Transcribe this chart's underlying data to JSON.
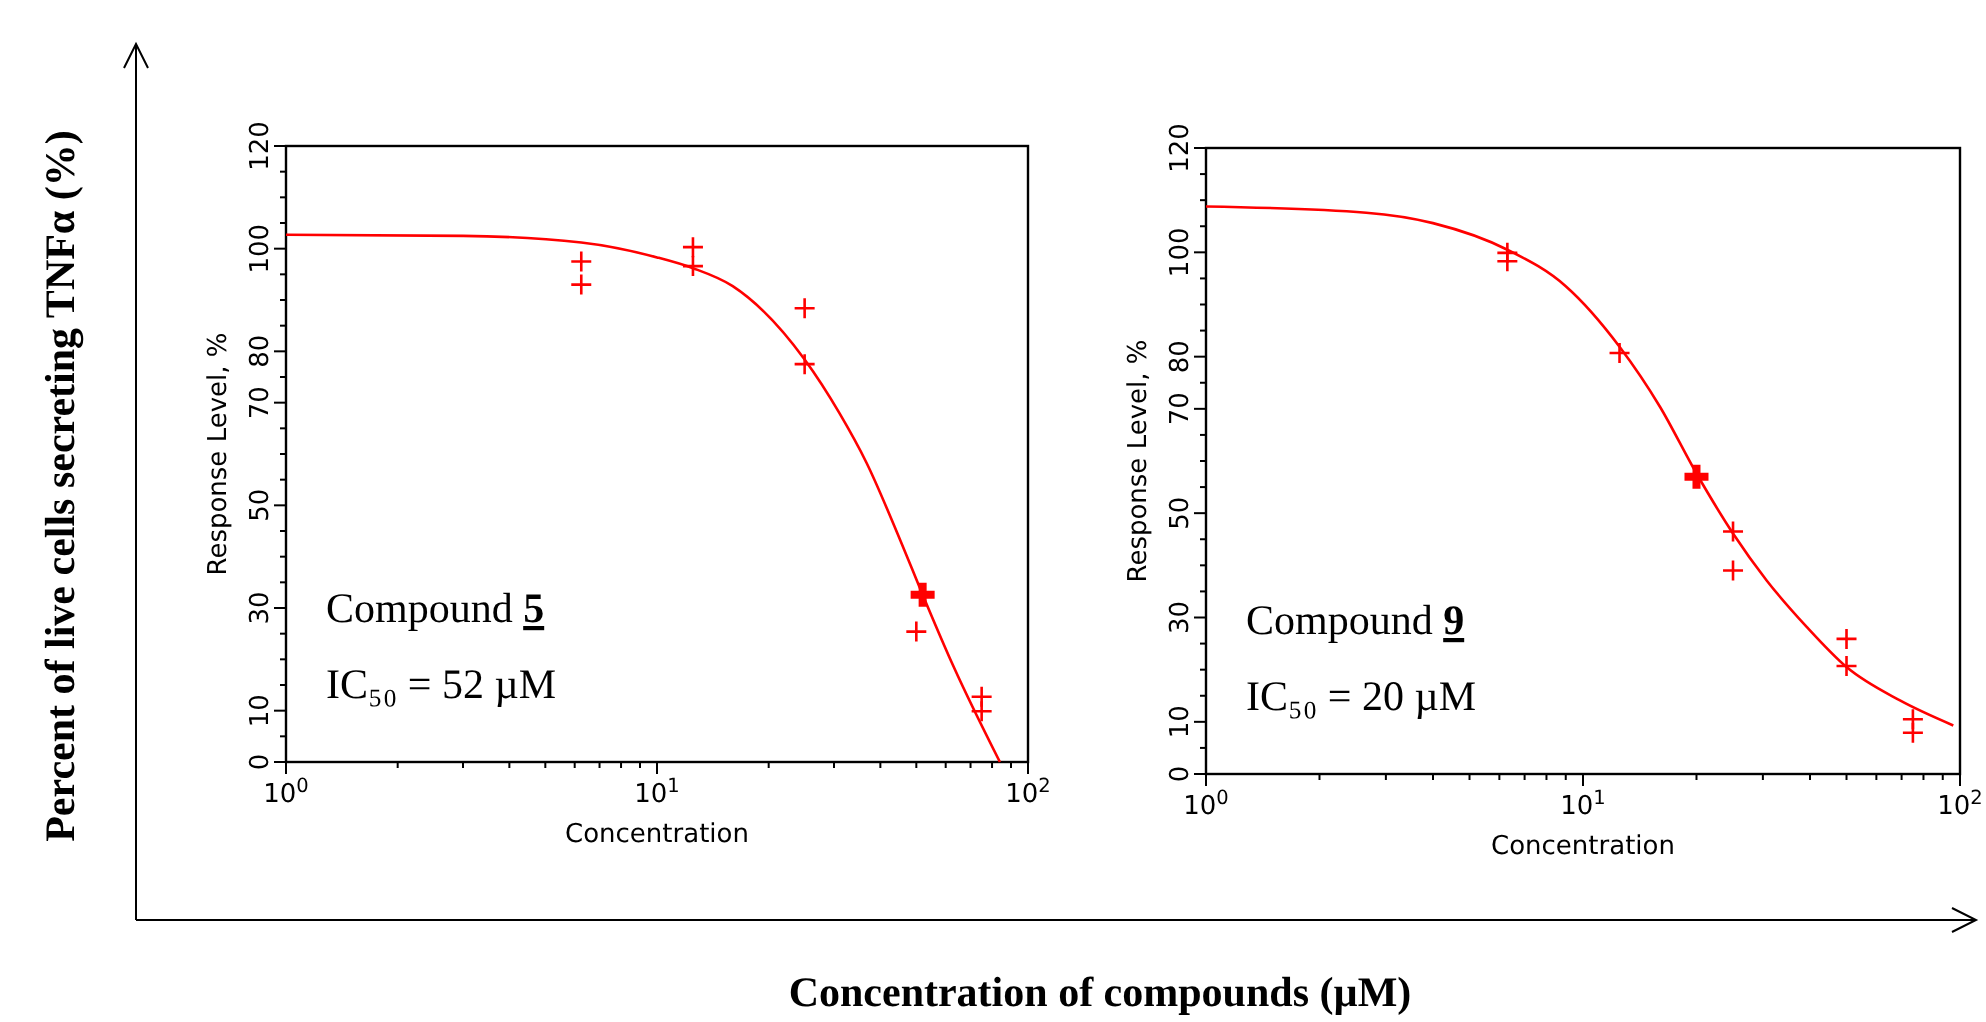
{
  "chart_data": [
    {
      "type": "scatter",
      "xlabel": "Concentration",
      "ylabel": "Response Level, %",
      "log": "x",
      "xlim": [
        1,
        100
      ],
      "ylim": [
        0,
        120
      ],
      "xticks": [
        {
          "value": 1,
          "label": "10$^{0}$"
        },
        {
          "value": 2,
          "label": null
        },
        {
          "value": 3,
          "label": null
        },
        {
          "value": 4,
          "label": null
        },
        {
          "value": 5,
          "label": null
        },
        {
          "value": 6,
          "label": null
        },
        {
          "value": 7,
          "label": null
        },
        {
          "value": 8,
          "label": null
        },
        {
          "value": 9,
          "label": null
        },
        {
          "value": 10,
          "label": "10$^{1}$"
        },
        {
          "value": 20,
          "label": null
        },
        {
          "value": 30,
          "label": null
        },
        {
          "value": 40,
          "label": null
        },
        {
          "value": 50,
          "label": null
        },
        {
          "value": 60,
          "label": null
        },
        {
          "value": 70,
          "label": null
        },
        {
          "value": 80,
          "label": null
        },
        {
          "value": 90,
          "label": null
        },
        {
          "value": 100,
          "label": "10$^{2}$"
        }
      ],
      "yticks": [
        0,
        {
          "value": 5,
          "label": null
        },
        10,
        {
          "value": 15,
          "label": null
        },
        {
          "value": 20,
          "label": null
        },
        {
          "value": 25,
          "label": null
        },
        30,
        {
          "value": 35,
          "label": null
        },
        {
          "value": 40,
          "label": null
        },
        {
          "value": 45,
          "label": null
        },
        50,
        {
          "value": 55,
          "label": null
        },
        {
          "value": 60,
          "label": null
        },
        {
          "value": 65,
          "label": null
        },
        70,
        {
          "value": 75,
          "label": null
        },
        80,
        {
          "value": 85,
          "label": null
        },
        {
          "value": 90,
          "label": null
        },
        {
          "value": 95,
          "label": null
        },
        100,
        {
          "value": 105,
          "label": null
        },
        {
          "value": 110,
          "label": null
        },
        {
          "value": 115,
          "label": null
        },
        120
      ],
      "series": [
        {
          "type": "line",
          "color": "#ff0000",
          "x": [
            1,
            3,
            6.25,
            10,
            12.5,
            16,
            25,
            31,
            36.7,
            45.2,
            52,
            63,
            84
          ],
          "values": [
            102.7,
            102.5,
            101.2,
            98.3,
            96.2,
            92.7,
            78.4,
            68,
            58.3,
            43.3,
            32.6,
            18.6,
            0
          ]
        },
        {
          "type": "scatter",
          "color": "#ff0000",
          "marker": "cross",
          "x": [
            6.25,
            6.25,
            12.5,
            12.5,
            25,
            25,
            50,
            75,
            75
          ],
          "values": [
            97.5,
            93,
            100.3,
            96.6,
            88.4,
            77.5,
            25.4,
            12.7,
            9.9
          ]
        },
        {
          "type": "scatter",
          "color": "#ff0000",
          "marker": "cross",
          "x": [
            52
          ],
          "values": [
            32.6
          ]
        }
      ],
      "annotations": [
        "Compound 5",
        "IC₅₀ = 52 µM"
      ]
    },
    {
      "type": "scatter",
      "xlabel": "Concentration",
      "ylabel": "Response Level, %",
      "log": "x",
      "xlim": [
        1,
        100
      ],
      "ylim": [
        0,
        120
      ],
      "xticks": [
        {
          "value": 1,
          "label": "10$^{0}$"
        },
        {
          "value": 2,
          "label": null
        },
        {
          "value": 3,
          "label": null
        },
        {
          "value": 4,
          "label": null
        },
        {
          "value": 5,
          "label": null
        },
        {
          "value": 6,
          "label": null
        },
        {
          "value": 7,
          "label": null
        },
        {
          "value": 8,
          "label": null
        },
        {
          "value": 9,
          "label": null
        },
        {
          "value": 10,
          "label": "10$^{1}$"
        },
        {
          "value": 20,
          "label": null
        },
        {
          "value": 30,
          "label": null
        },
        {
          "value": 40,
          "label": null
        },
        {
          "value": 50,
          "label": null
        },
        {
          "value": 60,
          "label": null
        },
        {
          "value": 70,
          "label": null
        },
        {
          "value": 80,
          "label": null
        },
        {
          "value": 90,
          "label": null
        },
        {
          "value": 100,
          "label": "10$^{2}$"
        }
      ],
      "yticks": [
        0,
        {
          "value": 5,
          "label": null
        },
        10,
        {
          "value": 15,
          "label": null
        },
        {
          "value": 20,
          "label": null
        },
        {
          "value": 25,
          "label": null
        },
        30,
        {
          "value": 35,
          "label": null
        },
        {
          "value": 40,
          "label": null
        },
        {
          "value": 45,
          "label": null
        },
        50,
        {
          "value": 55,
          "label": null
        },
        {
          "value": 60,
          "label": null
        },
        {
          "value": 65,
          "label": null
        },
        70,
        {
          "value": 75,
          "label": null
        },
        80,
        {
          "value": 85,
          "label": null
        },
        {
          "value": 90,
          "label": null
        },
        {
          "value": 95,
          "label": null
        },
        100,
        {
          "value": 105,
          "label": null
        },
        {
          "value": 110,
          "label": null
        },
        {
          "value": 115,
          "label": null
        },
        120
      ],
      "series": [
        {
          "type": "line",
          "color": "#ff0000",
          "x": [
            1,
            2.66,
            4,
            6.3,
            9,
            12.5,
            16,
            20,
            25,
            30.7,
            39.2,
            50,
            69.3,
            96
          ],
          "values": [
            108.8,
            107.6,
            105.6,
            100.5,
            93.5,
            81.9,
            70.4,
            57.6,
            46.1,
            37.1,
            28.2,
            20.5,
            14.1,
            9.3
          ]
        },
        {
          "type": "scatter",
          "color": "#ff0000",
          "marker": "cross",
          "x": [
            6.3,
            6.3,
            12.5,
            25,
            25,
            50,
            50,
            75,
            75
          ],
          "values": [
            99.9,
            98.3,
            80.7,
            46.5,
            39,
            25.9,
            20.7,
            10.5,
            7.9
          ]
        },
        {
          "type": "scatter",
          "color": "#ff0000",
          "marker": "cross",
          "x": [
            20
          ],
          "values": [
            57
          ]
        }
      ],
      "annotations": [
        "Compound 9",
        "IC₅₀ = 20 µM"
      ]
    },
    {
      "type": "other",
      "xlabel": "Concentration of compounds (µM)",
      "ylabel": "Percent of live cells secreting TNFα (%)"
    }
  ]
}
